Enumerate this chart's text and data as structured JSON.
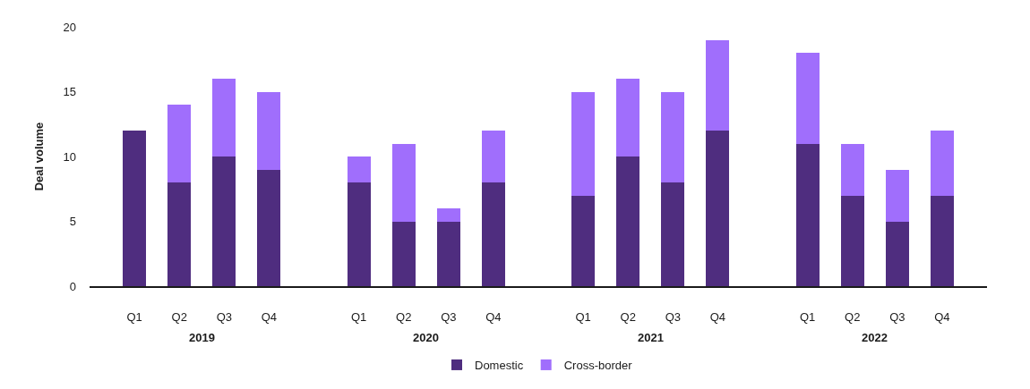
{
  "chart_data": {
    "type": "bar",
    "stacked": true,
    "ylabel": "Deal volume",
    "categories": [
      "Q1",
      "Q2",
      "Q3",
      "Q4",
      null,
      "Q1",
      "Q2",
      "Q3",
      "Q4",
      null,
      "Q1",
      "Q2",
      "Q3",
      "Q4",
      null,
      "Q1",
      "Q2",
      "Q3",
      "Q4"
    ],
    "series": [
      {
        "name": "Domestic",
        "color": "#4f2d7f",
        "values": [
          12,
          8,
          10,
          9,
          null,
          8,
          5,
          5,
          8,
          null,
          7,
          10,
          8,
          12,
          null,
          11,
          7,
          5,
          7
        ]
      },
      {
        "name": "Cross-border",
        "color": "#a06efc",
        "values": [
          null,
          6,
          6,
          6,
          null,
          2,
          6,
          1,
          4,
          null,
          8,
          6,
          7,
          7,
          null,
          7,
          4,
          4,
          5
        ]
      }
    ],
    "annotations": [
      "2019",
      "2020",
      "2021",
      "2022"
    ],
    "ylim": [
      0,
      20
    ],
    "yticks": [
      0,
      5,
      10,
      15,
      20
    ],
    "grid": false,
    "legend": "bottom"
  }
}
